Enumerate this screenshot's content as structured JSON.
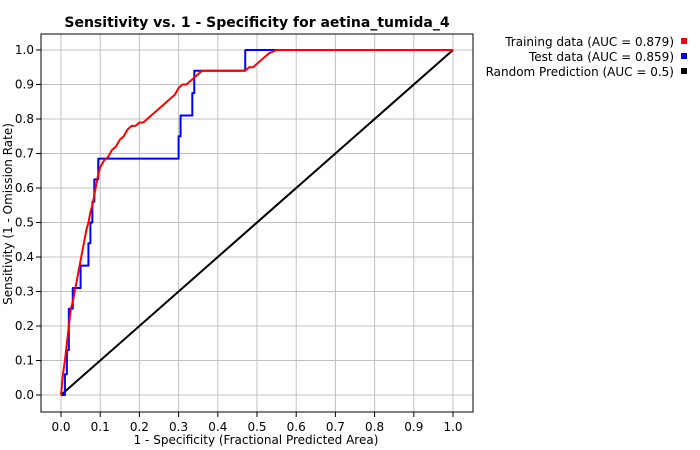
{
  "chart_data": {
    "type": "line",
    "title": "Sensitivity vs. 1 - Specificity for aetina_tumida_4",
    "xlabel": "1 - Specificity  (Fractional Predicted Area)",
    "ylabel": "Sensitivity  (1 - Omission Rate)",
    "xlim": [
      0,
      1
    ],
    "ylim": [
      0,
      1
    ],
    "xticks": [
      "0.0",
      "0.1",
      "0.2",
      "0.3",
      "0.4",
      "0.5",
      "0.6",
      "0.7",
      "0.8",
      "0.9",
      "1.0"
    ],
    "yticks": [
      "0.0",
      "0.1",
      "0.2",
      "0.3",
      "0.4",
      "0.5",
      "0.6",
      "0.7",
      "0.8",
      "0.9",
      "1.0"
    ],
    "grid": true,
    "legend_position": "right",
    "series": [
      {
        "name": "Training data (AUC = 0.879)",
        "color": "#ff0000",
        "x": [
          0.0,
          0.005,
          0.01,
          0.012,
          0.015,
          0.018,
          0.02,
          0.022,
          0.025,
          0.03,
          0.035,
          0.04,
          0.045,
          0.05,
          0.055,
          0.06,
          0.065,
          0.07,
          0.075,
          0.08,
          0.085,
          0.09,
          0.095,
          0.1,
          0.105,
          0.11,
          0.12,
          0.13,
          0.14,
          0.15,
          0.16,
          0.17,
          0.18,
          0.19,
          0.2,
          0.21,
          0.22,
          0.23,
          0.24,
          0.25,
          0.26,
          0.27,
          0.28,
          0.29,
          0.3,
          0.31,
          0.32,
          0.33,
          0.34,
          0.35,
          0.36,
          0.38,
          0.4,
          0.42,
          0.44,
          0.46,
          0.47,
          0.48,
          0.49,
          0.5,
          0.51,
          0.52,
          0.53,
          0.54,
          0.55,
          0.6,
          0.7,
          0.8,
          0.9,
          1.0
        ],
        "y": [
          0.0,
          0.06,
          0.1,
          0.12,
          0.15,
          0.18,
          0.2,
          0.22,
          0.25,
          0.27,
          0.3,
          0.33,
          0.36,
          0.39,
          0.42,
          0.45,
          0.48,
          0.5,
          0.53,
          0.55,
          0.58,
          0.61,
          0.64,
          0.66,
          0.67,
          0.68,
          0.69,
          0.71,
          0.72,
          0.74,
          0.75,
          0.77,
          0.78,
          0.78,
          0.79,
          0.79,
          0.8,
          0.81,
          0.82,
          0.83,
          0.84,
          0.85,
          0.86,
          0.87,
          0.89,
          0.9,
          0.9,
          0.91,
          0.92,
          0.93,
          0.94,
          0.94,
          0.94,
          0.94,
          0.94,
          0.94,
          0.94,
          0.95,
          0.95,
          0.96,
          0.97,
          0.98,
          0.99,
          0.995,
          1.0,
          1.0,
          1.0,
          1.0,
          1.0,
          1.0
        ]
      },
      {
        "name": "Test data (AUC = 0.859)",
        "color": "#0000ff",
        "x": [
          0.0,
          0.01,
          0.01,
          0.015,
          0.015,
          0.02,
          0.02,
          0.03,
          0.03,
          0.04,
          0.04,
          0.05,
          0.05,
          0.06,
          0.06,
          0.07,
          0.07,
          0.075,
          0.075,
          0.08,
          0.08,
          0.085,
          0.085,
          0.09,
          0.09,
          0.095,
          0.095,
          0.3,
          0.3,
          0.305,
          0.305,
          0.33,
          0.33,
          0.335,
          0.335,
          0.34,
          0.34,
          0.35,
          0.35,
          0.36,
          0.36,
          0.47,
          0.47,
          1.0
        ],
        "y": [
          0.0,
          0.0,
          0.06,
          0.06,
          0.13,
          0.13,
          0.25,
          0.25,
          0.31,
          0.31,
          0.31,
          0.31,
          0.375,
          0.375,
          0.375,
          0.375,
          0.44,
          0.44,
          0.5,
          0.5,
          0.56,
          0.56,
          0.625,
          0.625,
          0.625,
          0.625,
          0.685,
          0.685,
          0.75,
          0.75,
          0.81,
          0.81,
          0.81,
          0.81,
          0.875,
          0.875,
          0.94,
          0.94,
          0.94,
          0.94,
          0.94,
          0.94,
          1.0,
          1.0
        ]
      },
      {
        "name": "Random Prediction (AUC = 0.5)",
        "color": "#000000",
        "x": [
          0.0,
          1.0
        ],
        "y": [
          0.0,
          1.0
        ]
      }
    ]
  }
}
